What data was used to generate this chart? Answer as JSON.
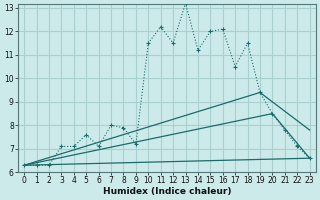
{
  "title": "",
  "xlabel": "Humidex (Indice chaleur)",
  "ylabel": "",
  "bg_color": "#cceaea",
  "grid_color": "#aacfcf",
  "line_color": "#1a6b6b",
  "xlim": [
    -0.5,
    23.5
  ],
  "ylim": [
    6,
    13
  ],
  "yticks": [
    6,
    7,
    8,
    9,
    10,
    11,
    12,
    13
  ],
  "xticks": [
    0,
    1,
    2,
    3,
    4,
    5,
    6,
    7,
    8,
    9,
    10,
    11,
    12,
    13,
    14,
    15,
    16,
    17,
    18,
    19,
    20,
    21,
    22,
    23
  ],
  "series1_x": [
    0,
    1,
    2,
    3,
    4,
    5,
    6,
    7,
    8,
    9,
    10,
    11,
    12,
    13,
    14,
    15,
    16,
    17,
    18,
    19,
    20,
    21,
    22,
    23
  ],
  "series1_y": [
    6.3,
    6.3,
    6.3,
    7.1,
    7.1,
    7.6,
    7.1,
    8.0,
    7.9,
    7.2,
    11.5,
    12.2,
    11.5,
    13.2,
    11.2,
    12.0,
    12.1,
    10.5,
    11.5,
    9.4,
    8.5,
    7.8,
    7.1,
    6.6
  ],
  "series2_x": [
    0,
    19,
    23
  ],
  "series2_y": [
    6.3,
    9.4,
    7.8
  ],
  "series3_x": [
    0,
    20,
    23
  ],
  "series3_y": [
    6.3,
    8.5,
    6.6
  ],
  "series4_x": [
    0,
    23
  ],
  "series4_y": [
    6.3,
    6.6
  ]
}
